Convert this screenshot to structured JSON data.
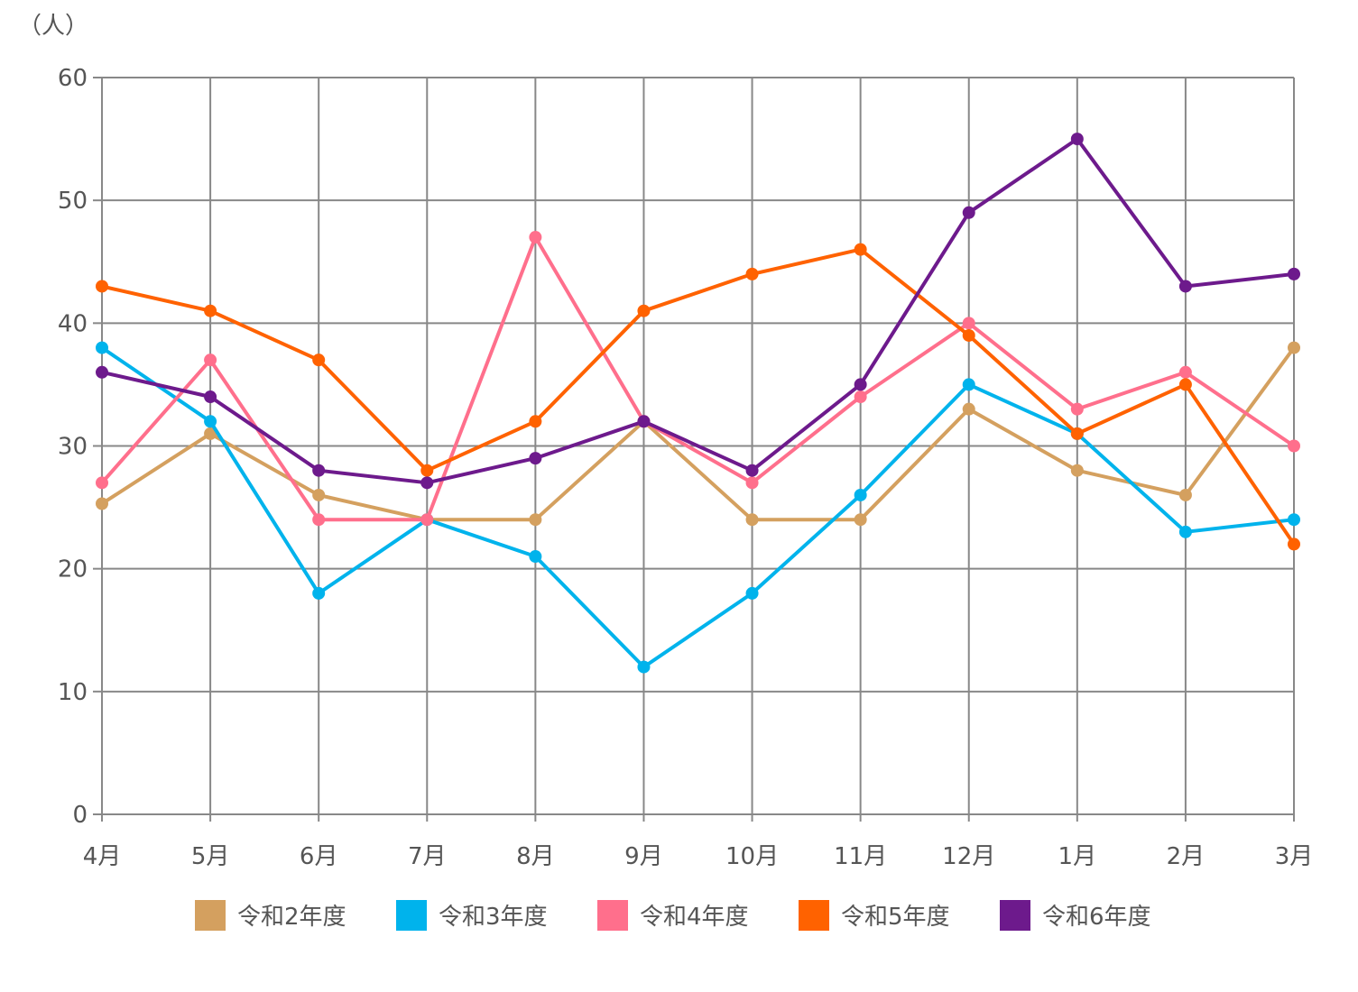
{
  "chart_data": {
    "type": "line",
    "title": "",
    "unit_label": "（人）",
    "xlabel": "",
    "ylabel": "",
    "categories": [
      "4月",
      "5月",
      "6月",
      "7月",
      "8月",
      "9月",
      "10月",
      "11月",
      "12月",
      "1月",
      "2月",
      "3月"
    ],
    "ylim": [
      0,
      60
    ],
    "yticks": [
      "0",
      "10",
      "20",
      "30",
      "40",
      "50",
      "60"
    ],
    "grid": true,
    "legend_position": "bottom",
    "series": [
      {
        "name": "令和2年度",
        "color": "#d4a05f",
        "values": [
          25.3,
          31,
          26,
          24,
          24,
          32,
          24,
          24,
          33,
          28,
          26,
          38
        ]
      },
      {
        "name": "令和3年度",
        "color": "#00b3ec",
        "values": [
          38,
          32,
          18,
          24,
          21,
          12,
          18,
          26,
          35,
          31,
          23,
          24
        ]
      },
      {
        "name": "令和4年度",
        "color": "#ff6f8c",
        "values": [
          27,
          37,
          24,
          24,
          47,
          32,
          27,
          34,
          40,
          33,
          36,
          30
        ]
      },
      {
        "name": "令和5年度",
        "color": "#ff6200",
        "values": [
          43,
          41,
          37,
          28,
          32,
          41,
          44,
          46,
          39,
          31,
          35,
          22
        ]
      },
      {
        "name": "令和6年度",
        "color": "#6d1a8c",
        "values": [
          36,
          34,
          28,
          27,
          29,
          32,
          28,
          35,
          49,
          55,
          43,
          44
        ]
      }
    ]
  }
}
